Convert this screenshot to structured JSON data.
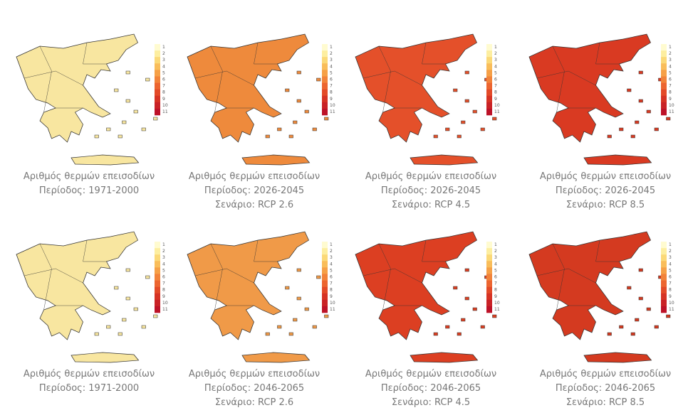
{
  "colorbar": {
    "ticks": [
      1,
      2,
      3,
      4,
      5,
      6,
      7,
      8,
      9,
      10,
      11
    ],
    "colors": [
      "#fffbd0",
      "#fdeea0",
      "#fbd978",
      "#f9bd5a",
      "#f6a047",
      "#f2833a",
      "#ec6530",
      "#e34a28",
      "#d63324",
      "#c92226",
      "#bd1228"
    ]
  },
  "panels": [
    {
      "caption": [
        "Αριθμός θερμών επεισοδίων",
        "Περίοδος: 1971-2000"
      ],
      "fill": "#f8e6a0"
    },
    {
      "caption": [
        "Αριθμός θερμών επεισοδίων",
        "Περίοδος: 2026-2045",
        "Σενάριο: RCP 2.6"
      ],
      "fill": "#ee8a3c"
    },
    {
      "caption": [
        "Αριθμός θερμών επεισοδίων",
        "Περίοδος: 2026-2045",
        "Σενάριο: RCP 4.5"
      ],
      "fill": "#e4502a"
    },
    {
      "caption": [
        "Αριθμός θερμών επεισοδίων",
        "Περίοδος: 2026-2045",
        "Σενάριο: RCP 8.5"
      ],
      "fill": "#d93a22"
    },
    {
      "caption": [
        "Αριθμός θερμών επεισοδίων",
        "Περίοδος: 1971-2000"
      ],
      "fill": "#f8e6a0"
    },
    {
      "caption": [
        "Αριθμός θερμών επεισοδίων",
        "Περίοδος: 2046-2065",
        "Σενάριο: RCP 2.6"
      ],
      "fill": "#f09a48"
    },
    {
      "caption": [
        "Αριθμός θερμών επεισοδίων",
        "Περίοδος: 2046-2065",
        "Σενάριο: RCP 4.5"
      ],
      "fill": "#dc3f22"
    },
    {
      "caption": [
        "Αριθμός θερμών επεισοδίων",
        "Περίοδος: 2046-2065",
        "Σενάριο: RCP 8.5"
      ],
      "fill": "#d43a20"
    }
  ]
}
